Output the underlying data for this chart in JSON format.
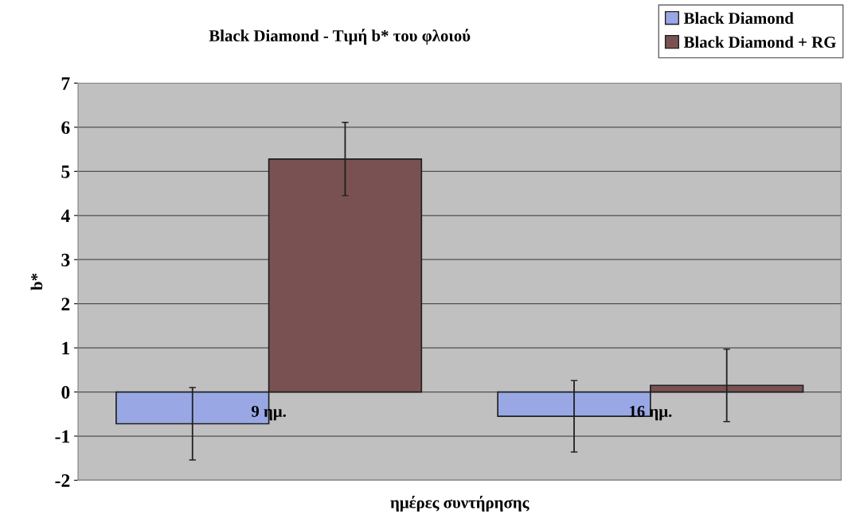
{
  "chart_data": {
    "type": "bar",
    "title": "Black Diamond - Τιμή b* του φλοιού",
    "xlabel": "ημέρες συντήρησης",
    "ylabel": "b*",
    "categories": [
      "9 ημ.",
      "16 ημ."
    ],
    "series": [
      {
        "name": "Black Diamond",
        "color": "#99a8e4",
        "values": [
          -0.72,
          -0.55
        ],
        "errors": [
          0.82,
          0.81
        ]
      },
      {
        "name": "Black Diamond + RG",
        "color": "#7a5152",
        "values": [
          5.28,
          0.15
        ],
        "errors": [
          0.83,
          0.82
        ]
      }
    ],
    "ylim": [
      -2,
      7
    ],
    "yticks": [
      -2,
      -1,
      0,
      1,
      2,
      3,
      4,
      5,
      6,
      7
    ],
    "grid": "y",
    "legend": "top right"
  }
}
